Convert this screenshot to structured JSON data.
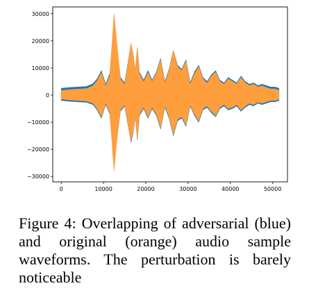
{
  "chart_data": {
    "type": "line",
    "title": "",
    "xlabel": "",
    "ylabel": "",
    "xlim": [
      -2000,
      53500
    ],
    "ylim": [
      -32000,
      32500
    ],
    "x_ticks": [
      0,
      10000,
      20000,
      30000,
      40000,
      50000
    ],
    "y_ticks": [
      30000,
      20000,
      10000,
      0,
      -10000,
      -20000,
      -30000
    ],
    "x_tick_labels": [
      "0",
      "10000",
      "20000",
      "30000",
      "40000",
      "50000"
    ],
    "y_tick_labels": [
      "30000",
      "20000",
      "10000",
      "0",
      "−10000",
      "−20000",
      "−30000"
    ],
    "grid": false,
    "legend": "none",
    "series": [
      {
        "color": "#1f77b4",
        "x": [
          0,
          2000,
          4000,
          6000,
          7500,
          8500,
          9500,
          10500,
          11500,
          12500,
          13000,
          14000,
          15000,
          15800,
          16500,
          17000,
          17500,
          18000,
          18500,
          19500,
          20500,
          21500,
          22500,
          23500,
          24500,
          25500,
          26500,
          27500,
          28500,
          29500,
          30500,
          31500,
          32500,
          33500,
          34500,
          35500,
          36500,
          37500,
          38500,
          39500,
          40500,
          41500,
          42500,
          43500,
          44500,
          45500,
          46500,
          47500,
          48500,
          49500,
          50500,
          51500
        ],
        "upper": [
          2500,
          2800,
          3000,
          3200,
          4200,
          6000,
          9000,
          4000,
          8000,
          28000,
          20000,
          6500,
          4500,
          12000,
          19000,
          15000,
          9000,
          17500,
          8500,
          5500,
          9000,
          5500,
          8500,
          13500,
          5000,
          9500,
          16500,
          11000,
          9500,
          13000,
          4500,
          8500,
          11000,
          6500,
          5000,
          7500,
          9000,
          5500,
          4500,
          6500,
          5500,
          4500,
          7000,
          5000,
          4000,
          4500,
          3500,
          4000,
          3500,
          3000,
          3000,
          2500
        ],
        "lower": [
          -2000,
          -2300,
          -2500,
          -2700,
          -3500,
          -5500,
          -8500,
          -3500,
          -7000,
          -26000,
          -18000,
          -6000,
          -4000,
          -11000,
          -17500,
          -14000,
          -8000,
          -16500,
          -7500,
          -5000,
          -8500,
          -5000,
          -7500,
          -12500,
          -4500,
          -8500,
          -15000,
          -9500,
          -8500,
          -11500,
          -4000,
          -7500,
          -10000,
          -5500,
          -4500,
          -6500,
          -8000,
          -5000,
          -4000,
          -5500,
          -5000,
          -4000,
          -6000,
          -4500,
          -3500,
          -4000,
          -3000,
          -3500,
          -3000,
          -2500,
          -2500,
          -2000
        ]
      },
      {
        "color": "#ff9e3d",
        "x": [
          0,
          2000,
          4000,
          6000,
          7500,
          8500,
          9500,
          10500,
          11500,
          12500,
          13000,
          14000,
          15000,
          15800,
          16500,
          17000,
          17500,
          18000,
          18500,
          19500,
          20500,
          21500,
          22500,
          23500,
          24500,
          25500,
          26500,
          27500,
          28500,
          29500,
          30500,
          31500,
          32500,
          33500,
          34500,
          35500,
          36500,
          37500,
          38500,
          39500,
          40500,
          41500,
          42500,
          43500,
          44500,
          45500,
          46500,
          47500,
          48500,
          49500,
          50500,
          51500
        ],
        "upper": [
          1700,
          2000,
          2200,
          2400,
          3400,
          5300,
          8300,
          3300,
          7200,
          30000,
          21500,
          6000,
          3800,
          11500,
          19000,
          15000,
          8600,
          17200,
          8000,
          4800,
          8300,
          5000,
          8000,
          13000,
          4500,
          9000,
          16500,
          10500,
          9000,
          12500,
          3800,
          7800,
          10500,
          6000,
          4400,
          7000,
          8500,
          5000,
          4000,
          6000,
          5000,
          4000,
          6500,
          4500,
          3500,
          4000,
          3000,
          3400,
          2800,
          2300,
          2300,
          1800
        ],
        "lower": [
          -1500,
          -1800,
          -2000,
          -2200,
          -3000,
          -5000,
          -8000,
          -3000,
          -6500,
          -28000,
          -19000,
          -5500,
          -3500,
          -10500,
          -17000,
          -13500,
          -7600,
          -16000,
          -7000,
          -4500,
          -8000,
          -4500,
          -7000,
          -12000,
          -4000,
          -8000,
          -14500,
          -9000,
          -8000,
          -11000,
          -3500,
          -7000,
          -9500,
          -5000,
          -4000,
          -6000,
          -7500,
          -4500,
          -3500,
          -5000,
          -4500,
          -3500,
          -5500,
          -4000,
          -3000,
          -3500,
          -2600,
          -3000,
          -2500,
          -2000,
          -2000,
          -1500
        ]
      }
    ]
  },
  "caption": {
    "text": "Figure 4:  Overlapping of adversarial (blue) and original (orange) audio sample waveforms.  The perturbation is barely noticeable"
  }
}
